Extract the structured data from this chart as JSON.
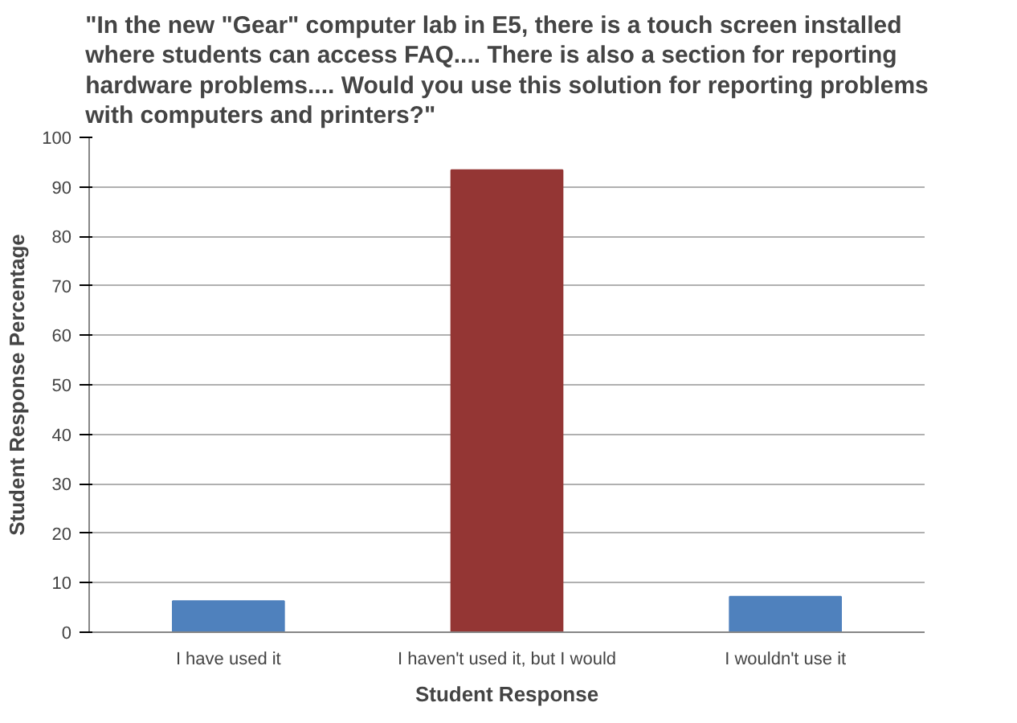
{
  "chart_data": {
    "type": "bar",
    "title": "\"In the new \"Gear\" computer lab in E5, there is a touch screen installed\nwhere students can access FAQ.... There is also a section for reporting\nhardware problems.... Would you use this solution for reporting problems\nwith computers and printers?\"",
    "xlabel": "Student Response",
    "ylabel": "Student Response Percentage",
    "categories": [
      "I have used it",
      "I haven't used it, but I would",
      "I wouldn't use it"
    ],
    "values": [
      6.3,
      93.4,
      7.2
    ],
    "colors": [
      "#4f81bd",
      "#943634",
      "#4f81bd"
    ],
    "ylim": [
      0,
      100
    ],
    "yticks": [
      0,
      10,
      20,
      30,
      40,
      50,
      60,
      70,
      80,
      90,
      100
    ],
    "grid": "y"
  }
}
